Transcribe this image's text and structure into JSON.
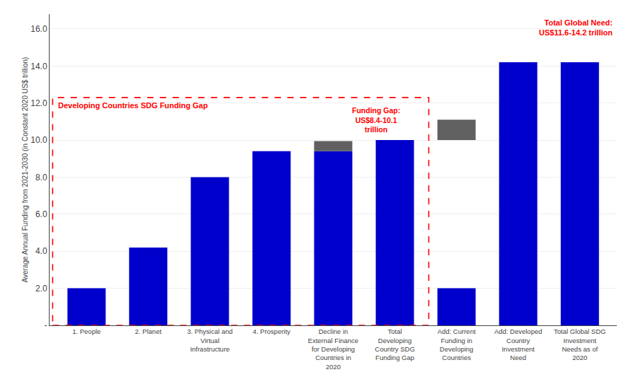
{
  "chart_data": {
    "type": "bar",
    "categories": [
      "1. People",
      "2. Planet",
      "3. Physical and\nVirtual\nInfrastructure",
      "4. Prosperity",
      "Decline in\nExternal Finance\nfor Developing\nCountries in\n2020",
      "Total\nDeveloping\nCountry SDG\nFunding Gap",
      "Add: Current\nFunding in\nDeveloping\nCountries",
      "Add: Developed\nCountry\nInvestment\nNeed",
      "Total Global SDG\nInvestment\nNeeds as of\n2020"
    ],
    "series": [
      {
        "color": "#0000CC",
        "values": [
          2.0,
          4.2,
          8.0,
          9.4,
          9.4,
          10.0,
          2.0,
          14.2,
          14.2
        ]
      },
      {
        "color": "#606060",
        "values": [
          0,
          0,
          0,
          0,
          0.55,
          0,
          1.1,
          0,
          0
        ],
        "base": [
          0,
          0,
          0,
          0,
          9.4,
          0,
          10.0,
          0,
          0
        ]
      }
    ],
    "ylabel": "Average Annual Funding from 2021-2030 (in Constant 2020 US$ trillion)",
    "ylim": [
      0,
      16.8
    ],
    "yticks": [
      {
        "value": 0,
        "label": "-"
      },
      {
        "value": 2.0,
        "label": "2.0"
      },
      {
        "value": 4.0,
        "label": "4.0"
      },
      {
        "value": 6.0,
        "label": "6.0"
      },
      {
        "value": 8.0,
        "label": "8.0"
      },
      {
        "value": 10.0,
        "label": "10.0"
      },
      {
        "value": 12.0,
        "label": "12.0"
      },
      {
        "value": 14.0,
        "label": "14.0"
      },
      {
        "value": 16.0,
        "label": "16.0"
      }
    ],
    "grid": true,
    "box": {
      "color": "red",
      "line_style": "dashed",
      "ylim": [
        0,
        12.3
      ],
      "categories": [
        "1. People",
        "Total\nDeveloping\nCountry SDG\nFunding Gap"
      ]
    },
    "annotations": [
      {
        "text": "Developing Countries SDG Funding Gap",
        "color": "red"
      },
      {
        "text": "Funding Gap:\nUS$8.4-10.1\ntrillion",
        "color": "red"
      },
      {
        "text": "Total Global Need:\nUS$11.6-14.2 trillion",
        "color": "red"
      }
    ]
  }
}
